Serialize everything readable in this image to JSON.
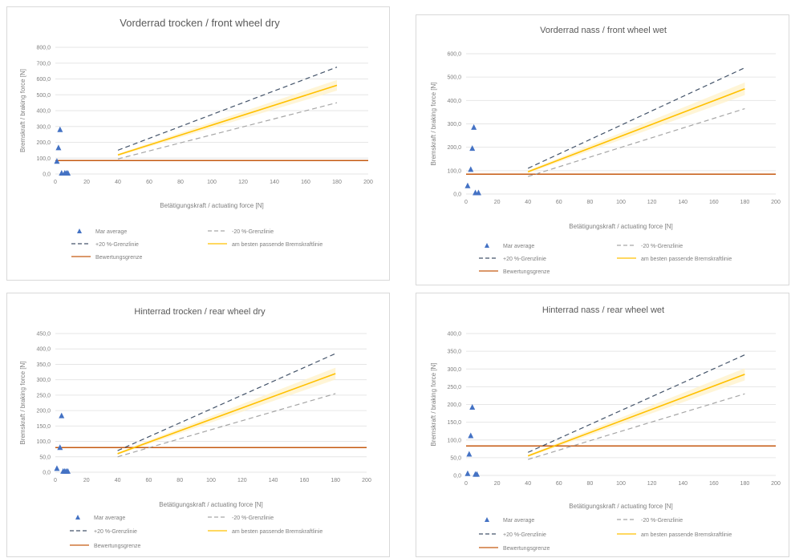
{
  "colors": {
    "points": "#4472c4",
    "minus20": "#a6a6a6",
    "plus20": "#44546a",
    "best": "#ffc000",
    "band": "#fff2cc",
    "limit": "#c55a11",
    "grid": "#e6e6e6",
    "text": "#595959"
  },
  "legend": {
    "points": "Mar average",
    "minus20": "-20 %-Grenzlinie",
    "plus20": "+20 %-Grenzlinie",
    "best": "am besten passende Bremskraftlinie",
    "limit": "Bewertungsgrenze"
  },
  "xlabel": "Betätigungskraft / actuating force [N]",
  "ylabel": "Bremskraft / braking force [N]",
  "chart_data": [
    {
      "type": "scatter",
      "title": "Vorderrad trocken / front wheel dry",
      "xlim": [
        0,
        200
      ],
      "xstep": 20,
      "ylim": [
        0,
        800
      ],
      "ystep": 100,
      "ytick_labels": [
        "0,0",
        "100,0",
        "200,0",
        "300,0",
        "400,0",
        "500,0",
        "600,0",
        "700,0",
        "800,0"
      ],
      "points": [
        [
          1,
          80
        ],
        [
          2,
          165
        ],
        [
          3,
          280
        ],
        [
          4,
          5
        ],
        [
          6,
          5
        ],
        [
          7,
          5
        ],
        [
          8,
          5
        ]
      ],
      "best_line": [
        [
          40,
          120
        ],
        [
          180,
          560
        ]
      ],
      "plus20_line": [
        [
          40,
          150
        ],
        [
          180,
          675
        ]
      ],
      "minus20_line": [
        [
          40,
          95
        ],
        [
          180,
          450
        ]
      ],
      "limit": 85
    },
    {
      "type": "scatter",
      "title": "Vorderrad nass / front wheel wet",
      "xlim": [
        0,
        200
      ],
      "xstep": 20,
      "ylim": [
        0,
        600
      ],
      "ystep": 100,
      "ytick_labels": [
        "0,0",
        "100,0",
        "200,0",
        "300,0",
        "400,0",
        "500,0",
        "600,0"
      ],
      "points": [
        [
          1,
          35
        ],
        [
          3,
          105
        ],
        [
          4,
          195
        ],
        [
          5,
          285
        ],
        [
          6,
          5
        ],
        [
          8,
          5
        ]
      ],
      "best_line": [
        [
          40,
          95
        ],
        [
          180,
          450
        ]
      ],
      "plus20_line": [
        [
          40,
          110
        ],
        [
          180,
          540
        ]
      ],
      "minus20_line": [
        [
          40,
          75
        ],
        [
          180,
          365
        ]
      ],
      "limit": 85
    },
    {
      "type": "scatter",
      "title": "Hinterrad trocken / rear wheel dry",
      "xlim": [
        0,
        200
      ],
      "xstep": 20,
      "ylim": [
        0,
        450
      ],
      "ystep": 50,
      "ytick_labels": [
        "0,0",
        "50,0",
        "100,0",
        "150,0",
        "200,0",
        "250,0",
        "300,0",
        "350,0",
        "400,0",
        "450,0"
      ],
      "points": [
        [
          1,
          12
        ],
        [
          3,
          80
        ],
        [
          4,
          183
        ],
        [
          5,
          3
        ],
        [
          6,
          3
        ],
        [
          7,
          3
        ],
        [
          8,
          3
        ]
      ],
      "best_line": [
        [
          40,
          60
        ],
        [
          180,
          320
        ]
      ],
      "plus20_line": [
        [
          40,
          70
        ],
        [
          180,
          385
        ]
      ],
      "minus20_line": [
        [
          40,
          50
        ],
        [
          180,
          255
        ]
      ],
      "limit": 80
    },
    {
      "type": "scatter",
      "title": "Hinterrad nass / rear wheel wet",
      "xlim": [
        0,
        200
      ],
      "xstep": 20,
      "ylim": [
        0,
        400
      ],
      "ystep": 50,
      "ytick_labels": [
        "0,0",
        "50,0",
        "100,0",
        "150,0",
        "200,0",
        "250,0",
        "300,0",
        "350,0",
        "400,0"
      ],
      "points": [
        [
          1,
          5
        ],
        [
          2,
          60
        ],
        [
          3,
          112
        ],
        [
          4,
          192
        ],
        [
          6,
          3
        ],
        [
          7,
          3
        ]
      ],
      "best_line": [
        [
          40,
          55
        ],
        [
          180,
          285
        ]
      ],
      "plus20_line": [
        [
          40,
          65
        ],
        [
          180,
          340
        ]
      ],
      "minus20_line": [
        [
          40,
          45
        ],
        [
          180,
          230
        ]
      ],
      "limit": 83
    }
  ]
}
